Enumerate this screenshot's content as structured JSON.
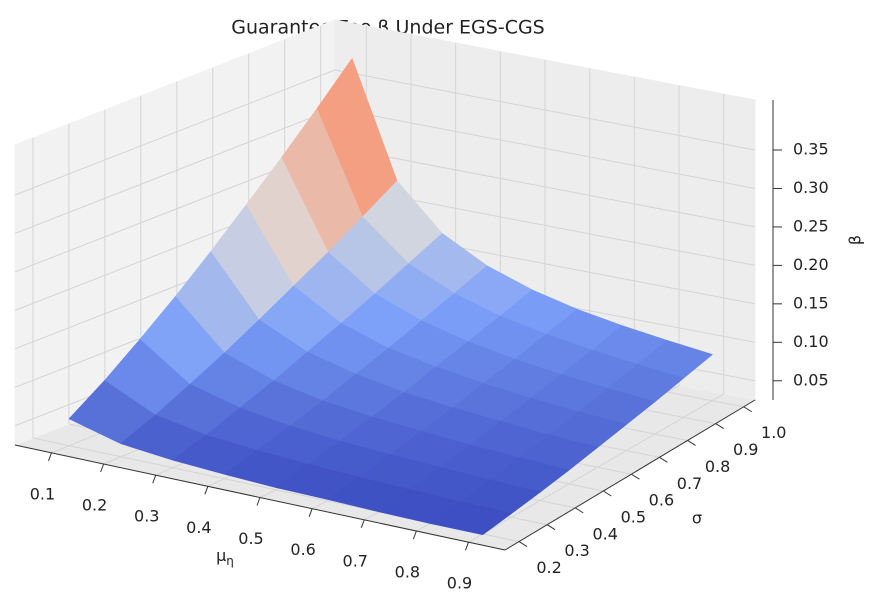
{
  "chart_data": {
    "type": "surface",
    "title": "Guarantee Fee β Under EGS-CGS",
    "x_label": {
      "base": "μ",
      "sub": "η"
    },
    "y_label": "σ",
    "z_label": "β",
    "x": [
      0.1,
      0.2,
      0.3,
      0.4,
      0.5,
      0.6,
      0.7,
      0.8,
      0.9
    ],
    "y": [
      0.2,
      0.3,
      0.4,
      0.5,
      0.6,
      0.7,
      0.8,
      0.9,
      1
    ],
    "values": [
      [
        0.06,
        0.042,
        0.035,
        0.031,
        0.028,
        0.027,
        0.025,
        0.024,
        0.024
      ],
      [
        0.091,
        0.06,
        0.048,
        0.042,
        0.038,
        0.035,
        0.033,
        0.031,
        0.03
      ],
      [
        0.126,
        0.081,
        0.064,
        0.054,
        0.048,
        0.044,
        0.041,
        0.038,
        0.036
      ],
      [
        0.163,
        0.103,
        0.08,
        0.067,
        0.059,
        0.054,
        0.049,
        0.046,
        0.043
      ],
      [
        0.203,
        0.127,
        0.098,
        0.082,
        0.071,
        0.064,
        0.059,
        0.054,
        0.051
      ],
      [
        0.245,
        0.152,
        0.116,
        0.096,
        0.084,
        0.075,
        0.068,
        0.063,
        0.059
      ],
      [
        0.288,
        0.177,
        0.135,
        0.112,
        0.097,
        0.086,
        0.078,
        0.072,
        0.067
      ],
      [
        0.333,
        0.204,
        0.155,
        0.128,
        0.11,
        0.098,
        0.089,
        0.082,
        0.076
      ],
      [
        0.38,
        0.232,
        0.175,
        0.144,
        0.124,
        0.11,
        0.1,
        0.092,
        0.085
      ]
    ],
    "xlim": [
      0.03,
      0.97
    ],
    "ylim": [
      0.15,
      1.04
    ],
    "zlim": [
      0.025,
      0.415
    ],
    "xticks": [
      0.1,
      0.2,
      0.3,
      0.4,
      0.5,
      0.6,
      0.7,
      0.8,
      0.9
    ],
    "yticks": [
      0.2,
      0.3,
      0.4,
      0.5,
      0.6,
      0.7,
      0.8,
      0.9,
      {
        "value": 1,
        "label": "1.0"
      }
    ],
    "zticks": [
      0.05,
      {
        "value": 0.1,
        "label": "0.10"
      },
      0.15,
      {
        "value": 0.2,
        "label": "0.20"
      },
      0.25,
      {
        "value": 0.3,
        "label": "0.30"
      },
      0.35
    ],
    "colormap": [
      "#3b4cc0",
      "#7b9ff9",
      "#dddcdc",
      "#f59c7d",
      "#b40426"
    ],
    "grid": true
  }
}
